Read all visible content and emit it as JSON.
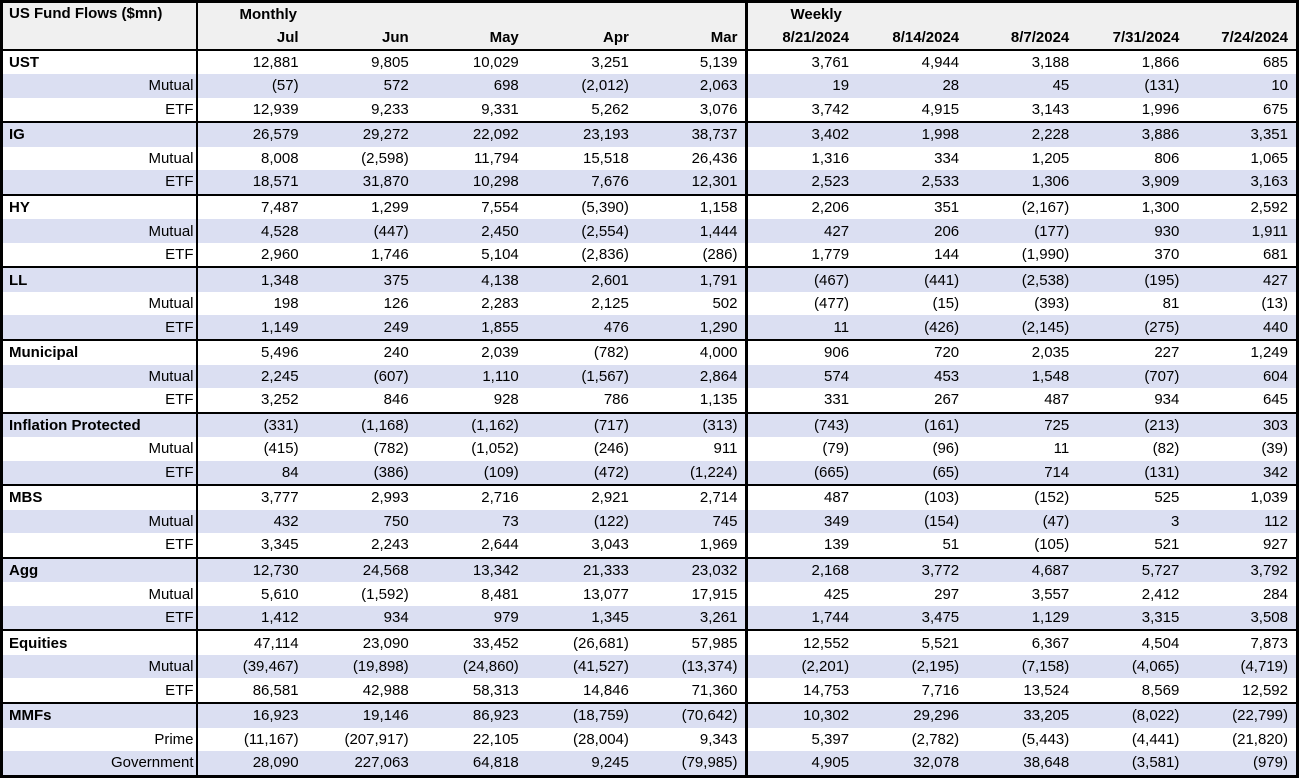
{
  "table": {
    "title": "US Fund Flows ($mn)",
    "monthly_header": "Monthly",
    "weekly_header": "Weekly",
    "monthly_columns": [
      "Jul",
      "Jun",
      "May",
      "Apr",
      "Mar"
    ],
    "weekly_columns": [
      "8/21/2024",
      "8/14/2024",
      "8/7/2024",
      "7/31/2024",
      "7/24/2024"
    ],
    "colors": {
      "stripe": "#dbdff2",
      "header_bg": "#f0f0f0",
      "border": "#000000"
    },
    "groups": [
      {
        "name": "UST",
        "rows": [
          {
            "label": "UST",
            "type": "category",
            "monthly": [
              "12,881",
              "9,805",
              "10,029",
              "3,251",
              "5,139"
            ],
            "weekly": [
              "3,761",
              "4,944",
              "3,188",
              "1,866",
              "685"
            ]
          },
          {
            "label": "Mutual",
            "type": "sub",
            "monthly": [
              "(57)",
              "572",
              "698",
              "(2,012)",
              "2,063"
            ],
            "weekly": [
              "19",
              "28",
              "45",
              "(131)",
              "10"
            ]
          },
          {
            "label": "ETF",
            "type": "sub",
            "monthly": [
              "12,939",
              "9,233",
              "9,331",
              "5,262",
              "3,076"
            ],
            "weekly": [
              "3,742",
              "4,915",
              "3,143",
              "1,996",
              "675"
            ]
          }
        ]
      },
      {
        "name": "IG",
        "rows": [
          {
            "label": "IG",
            "type": "category",
            "monthly": [
              "26,579",
              "29,272",
              "22,092",
              "23,193",
              "38,737"
            ],
            "weekly": [
              "3,402",
              "1,998",
              "2,228",
              "3,886",
              "3,351"
            ]
          },
          {
            "label": "Mutual",
            "type": "sub",
            "monthly": [
              "8,008",
              "(2,598)",
              "11,794",
              "15,518",
              "26,436"
            ],
            "weekly": [
              "1,316",
              "334",
              "1,205",
              "806",
              "1,065"
            ]
          },
          {
            "label": "ETF",
            "type": "sub",
            "monthly": [
              "18,571",
              "31,870",
              "10,298",
              "7,676",
              "12,301"
            ],
            "weekly": [
              "2,523",
              "2,533",
              "1,306",
              "3,909",
              "3,163"
            ]
          }
        ]
      },
      {
        "name": "HY",
        "rows": [
          {
            "label": "HY",
            "type": "category",
            "monthly": [
              "7,487",
              "1,299",
              "7,554",
              "(5,390)",
              "1,158"
            ],
            "weekly": [
              "2,206",
              "351",
              "(2,167)",
              "1,300",
              "2,592"
            ]
          },
          {
            "label": "Mutual",
            "type": "sub",
            "monthly": [
              "4,528",
              "(447)",
              "2,450",
              "(2,554)",
              "1,444"
            ],
            "weekly": [
              "427",
              "206",
              "(177)",
              "930",
              "1,911"
            ]
          },
          {
            "label": "ETF",
            "type": "sub",
            "monthly": [
              "2,960",
              "1,746",
              "5,104",
              "(2,836)",
              "(286)"
            ],
            "weekly": [
              "1,779",
              "144",
              "(1,990)",
              "370",
              "681"
            ]
          }
        ]
      },
      {
        "name": "LL",
        "rows": [
          {
            "label": "LL",
            "type": "category",
            "monthly": [
              "1,348",
              "375",
              "4,138",
              "2,601",
              "1,791"
            ],
            "weekly": [
              "(467)",
              "(441)",
              "(2,538)",
              "(195)",
              "427"
            ]
          },
          {
            "label": "Mutual",
            "type": "sub",
            "monthly": [
              "198",
              "126",
              "2,283",
              "2,125",
              "502"
            ],
            "weekly": [
              "(477)",
              "(15)",
              "(393)",
              "81",
              "(13)"
            ]
          },
          {
            "label": "ETF",
            "type": "sub",
            "monthly": [
              "1,149",
              "249",
              "1,855",
              "476",
              "1,290"
            ],
            "weekly": [
              "11",
              "(426)",
              "(2,145)",
              "(275)",
              "440"
            ]
          }
        ]
      },
      {
        "name": "Municipal",
        "rows": [
          {
            "label": "Municipal",
            "type": "category",
            "monthly": [
              "5,496",
              "240",
              "2,039",
              "(782)",
              "4,000"
            ],
            "weekly": [
              "906",
              "720",
              "2,035",
              "227",
              "1,249"
            ]
          },
          {
            "label": "Mutual",
            "type": "sub",
            "monthly": [
              "2,245",
              "(607)",
              "1,110",
              "(1,567)",
              "2,864"
            ],
            "weekly": [
              "574",
              "453",
              "1,548",
              "(707)",
              "604"
            ]
          },
          {
            "label": "ETF",
            "type": "sub",
            "monthly": [
              "3,252",
              "846",
              "928",
              "786",
              "1,135"
            ],
            "weekly": [
              "331",
              "267",
              "487",
              "934",
              "645"
            ]
          }
        ]
      },
      {
        "name": "Inflation Protected",
        "rows": [
          {
            "label": "Inflation Protected",
            "type": "category",
            "monthly": [
              "(331)",
              "(1,168)",
              "(1,162)",
              "(717)",
              "(313)"
            ],
            "weekly": [
              "(743)",
              "(161)",
              "725",
              "(213)",
              "303"
            ]
          },
          {
            "label": "Mutual",
            "type": "sub",
            "monthly": [
              "(415)",
              "(782)",
              "(1,052)",
              "(246)",
              "911"
            ],
            "weekly": [
              "(79)",
              "(96)",
              "11",
              "(82)",
              "(39)"
            ]
          },
          {
            "label": "ETF",
            "type": "sub",
            "monthly": [
              "84",
              "(386)",
              "(109)",
              "(472)",
              "(1,224)"
            ],
            "weekly": [
              "(665)",
              "(65)",
              "714",
              "(131)",
              "342"
            ]
          }
        ]
      },
      {
        "name": "MBS",
        "rows": [
          {
            "label": "MBS",
            "type": "category",
            "monthly": [
              "3,777",
              "2,993",
              "2,716",
              "2,921",
              "2,714"
            ],
            "weekly": [
              "487",
              "(103)",
              "(152)",
              "525",
              "1,039"
            ]
          },
          {
            "label": "Mutual",
            "type": "sub",
            "monthly": [
              "432",
              "750",
              "73",
              "(122)",
              "745"
            ],
            "weekly": [
              "349",
              "(154)",
              "(47)",
              "3",
              "112"
            ]
          },
          {
            "label": "ETF",
            "type": "sub",
            "monthly": [
              "3,345",
              "2,243",
              "2,644",
              "3,043",
              "1,969"
            ],
            "weekly": [
              "139",
              "51",
              "(105)",
              "521",
              "927"
            ]
          }
        ]
      },
      {
        "name": "Agg",
        "rows": [
          {
            "label": "Agg",
            "type": "category",
            "monthly": [
              "12,730",
              "24,568",
              "13,342",
              "21,333",
              "23,032"
            ],
            "weekly": [
              "2,168",
              "3,772",
              "4,687",
              "5,727",
              "3,792"
            ]
          },
          {
            "label": "Mutual",
            "type": "sub",
            "monthly": [
              "5,610",
              "(1,592)",
              "8,481",
              "13,077",
              "17,915"
            ],
            "weekly": [
              "425",
              "297",
              "3,557",
              "2,412",
              "284"
            ]
          },
          {
            "label": "ETF",
            "type": "sub",
            "monthly": [
              "1,412",
              "934",
              "979",
              "1,345",
              "3,261"
            ],
            "weekly": [
              "1,744",
              "3,475",
              "1,129",
              "3,315",
              "3,508"
            ]
          }
        ]
      },
      {
        "name": "Equities",
        "rows": [
          {
            "label": "Equities",
            "type": "category",
            "monthly": [
              "47,114",
              "23,090",
              "33,452",
              "(26,681)",
              "57,985"
            ],
            "weekly": [
              "12,552",
              "5,521",
              "6,367",
              "4,504",
              "7,873"
            ]
          },
          {
            "label": "Mutual",
            "type": "sub",
            "monthly": [
              "(39,467)",
              "(19,898)",
              "(24,860)",
              "(41,527)",
              "(13,374)"
            ],
            "weekly": [
              "(2,201)",
              "(2,195)",
              "(7,158)",
              "(4,065)",
              "(4,719)"
            ]
          },
          {
            "label": "ETF",
            "type": "sub",
            "monthly": [
              "86,581",
              "42,988",
              "58,313",
              "14,846",
              "71,360"
            ],
            "weekly": [
              "14,753",
              "7,716",
              "13,524",
              "8,569",
              "12,592"
            ]
          }
        ]
      },
      {
        "name": "MMFs",
        "rows": [
          {
            "label": "MMFs",
            "type": "category",
            "monthly": [
              "16,923",
              "19,146",
              "86,923",
              "(18,759)",
              "(70,642)"
            ],
            "weekly": [
              "10,302",
              "29,296",
              "33,205",
              "(8,022)",
              "(22,799)"
            ]
          },
          {
            "label": "Prime",
            "type": "sub",
            "monthly": [
              "(11,167)",
              "(207,917)",
              "22,105",
              "(28,004)",
              "9,343"
            ],
            "weekly": [
              "5,397",
              "(2,782)",
              "(5,443)",
              "(4,441)",
              "(21,820)"
            ]
          },
          {
            "label": "Government",
            "type": "sub",
            "monthly": [
              "28,090",
              "227,063",
              "64,818",
              "9,245",
              "(79,985)"
            ],
            "weekly": [
              "4,905",
              "32,078",
              "38,648",
              "(3,581)",
              "(979)"
            ]
          }
        ]
      }
    ]
  }
}
